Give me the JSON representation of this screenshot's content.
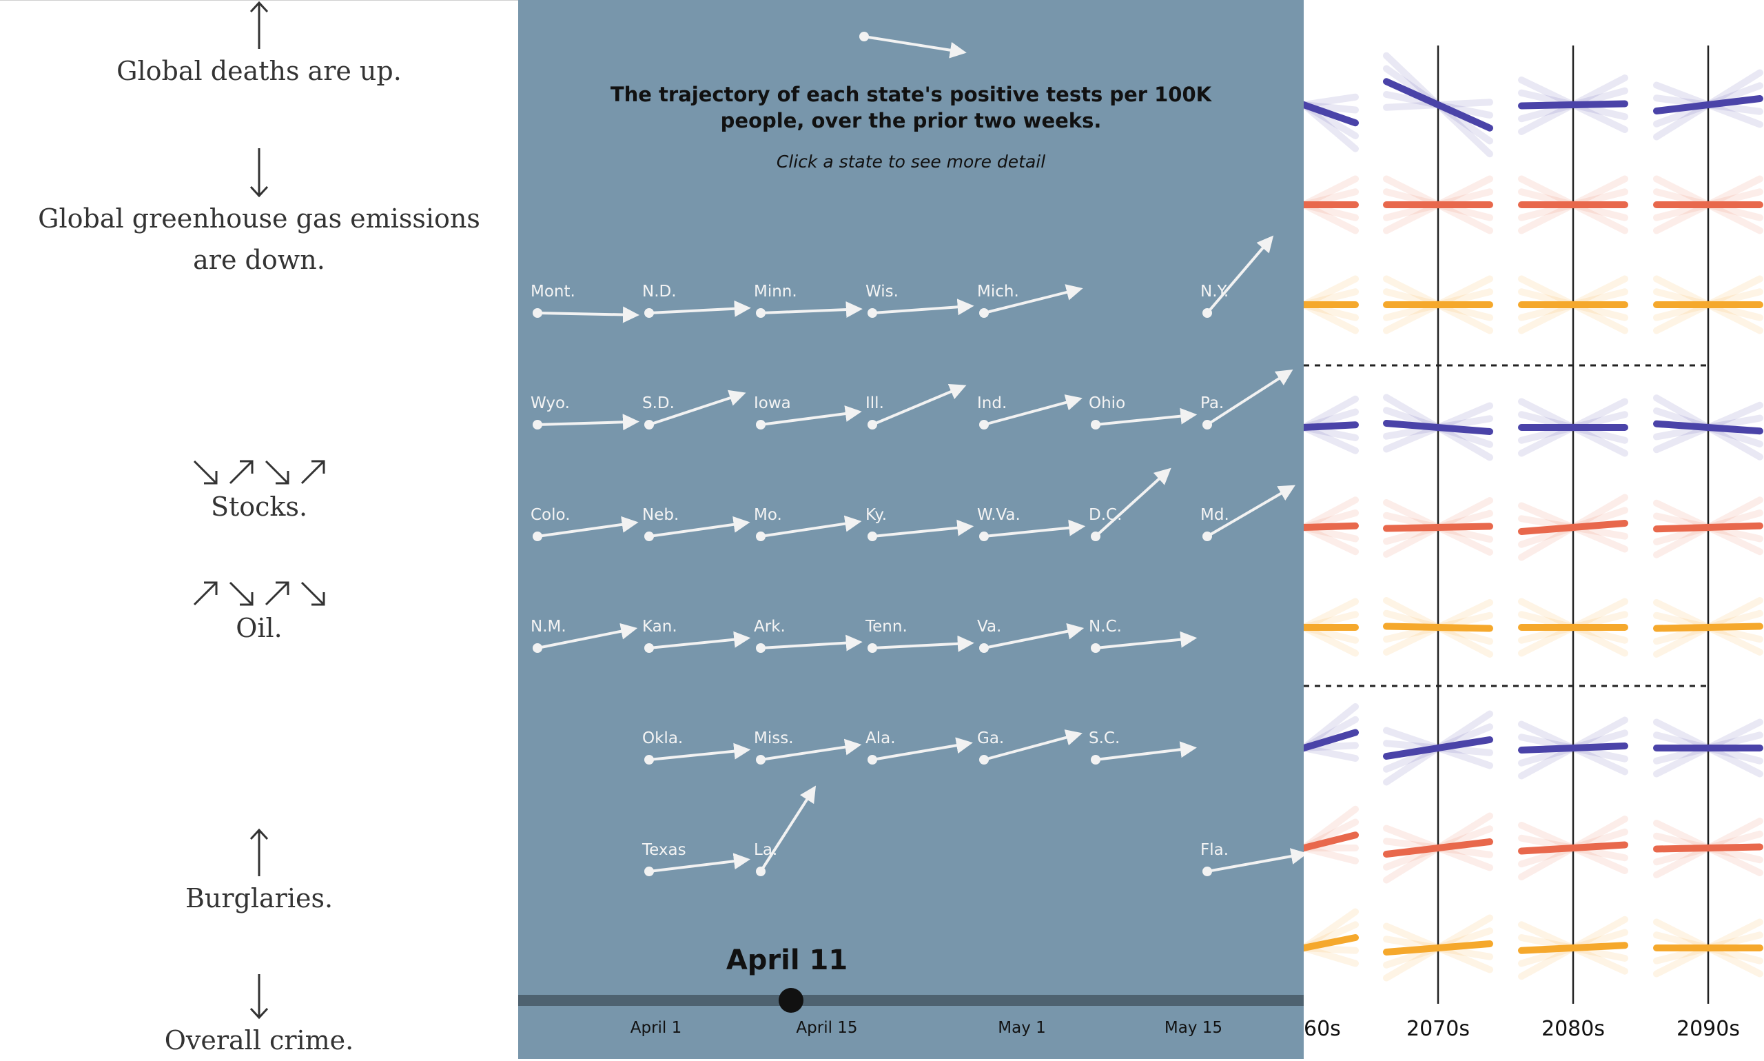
{
  "left_panel": {
    "items": [
      {
        "text": "Global deaths are up.",
        "arrows": [
          "up-arrow-icon"
        ]
      },
      {
        "text": "Global greenhouse gas emissions are down.",
        "arrows": [
          "down-arrow-icon"
        ]
      },
      {
        "text": "Stocks.",
        "arrows": [
          "down-right-arrow-icon",
          "up-right-arrow-icon",
          "down-right-arrow-icon",
          "up-right-arrow-icon"
        ]
      },
      {
        "text": "Oil.",
        "arrows": [
          "up-right-arrow-icon",
          "down-right-arrow-icon",
          "up-right-arrow-icon",
          "down-right-arrow-icon"
        ]
      },
      {
        "text": "Burglaries.",
        "arrows": [
          "up-arrow-icon"
        ]
      },
      {
        "text": "Overall crime.",
        "arrows": [
          "down-arrow-icon"
        ]
      }
    ]
  },
  "middle_panel": {
    "background": "#7896ab",
    "title_line1": "The trajectory of each state's positive tests per 100K",
    "title_line2": "people, over the prior two weeks.",
    "instruction": "Click a state to see more detail",
    "current_date": "April 11",
    "timeline_ticks": [
      "April 1",
      "April 15",
      "May 1",
      "May 15"
    ],
    "states": [
      {
        "label": "Mont.",
        "dx": 1,
        "dy": 0.02
      },
      {
        "label": "N.D.",
        "dx": 1,
        "dy": -0.05
      },
      {
        "label": "Minn.",
        "dx": 1,
        "dy": -0.04
      },
      {
        "label": "Wis.",
        "dx": 1,
        "dy": -0.07
      },
      {
        "label": "Mich.",
        "dx": 1,
        "dy": -0.25
      },
      {
        "label": "N.Y.",
        "dx": 0.65,
        "dy": -0.76
      },
      {
        "label": "Wyo.",
        "dx": 1,
        "dy": -0.03
      },
      {
        "label": "S.D.",
        "dx": 1,
        "dy": -0.33
      },
      {
        "label": "Iowa",
        "dx": 1,
        "dy": -0.13
      },
      {
        "label": "Ill.",
        "dx": 1,
        "dy": -0.42
      },
      {
        "label": "Ind.",
        "dx": 1,
        "dy": -0.27
      },
      {
        "label": "Ohio",
        "dx": 1,
        "dy": -0.1
      },
      {
        "label": "Pa.",
        "dx": 0.84,
        "dy": -0.54
      },
      {
        "label": "Colo.",
        "dx": 1,
        "dy": -0.14
      },
      {
        "label": "Neb.",
        "dx": 1,
        "dy": -0.14
      },
      {
        "label": "Mo.",
        "dx": 1,
        "dy": -0.15
      },
      {
        "label": "Ky.",
        "dx": 1,
        "dy": -0.1
      },
      {
        "label": "W.Va.",
        "dx": 1,
        "dy": -0.1
      },
      {
        "label": "D.C.",
        "dx": 0.74,
        "dy": -0.67
      },
      {
        "label": "Md.",
        "dx": 0.86,
        "dy": -0.5
      },
      {
        "label": "N.M.",
        "dx": 1,
        "dy": -0.2
      },
      {
        "label": "Kan.",
        "dx": 1,
        "dy": -0.1
      },
      {
        "label": "Ark.",
        "dx": 1,
        "dy": -0.06
      },
      {
        "label": "Tenn.",
        "dx": 1,
        "dy": -0.05
      },
      {
        "label": "Va.",
        "dx": 1,
        "dy": -0.2
      },
      {
        "label": "N.C.",
        "dx": 1,
        "dy": -0.1
      },
      {
        "label": "Okla.",
        "dx": 1,
        "dy": -0.1
      },
      {
        "label": "Miss.",
        "dx": 1,
        "dy": -0.15
      },
      {
        "label": "Ala.",
        "dx": 1,
        "dy": -0.17
      },
      {
        "label": "Ga.",
        "dx": 1,
        "dy": -0.27
      },
      {
        "label": "S.C.",
        "dx": 1,
        "dy": -0.12
      },
      {
        "label": "Texas",
        "dx": 1,
        "dy": -0.12
      },
      {
        "label": "La.",
        "dx": 0.54,
        "dy": -0.84
      },
      {
        "label": "Fla.",
        "dx": 1,
        "dy": -0.18
      }
    ]
  },
  "right_panel": {
    "decade_labels": [
      "60s",
      "2070s",
      "2080s",
      "2090s"
    ],
    "colors": {
      "purple": "#4a43a8",
      "red": "#e8684c",
      "orange": "#f5a82c",
      "axis": "#222222"
    },
    "groups": [
      {
        "slopes": {
          "purple": [
            -0.35,
            -0.45,
            0.02,
            0.12
          ],
          "red": [
            0.0,
            0.0,
            0.0,
            0.0
          ],
          "orange": [
            0.0,
            0.0,
            0.0,
            0.0
          ]
        }
      },
      {
        "slopes": {
          "purple": [
            0.05,
            -0.08,
            0.0,
            -0.07
          ],
          "red": [
            0.03,
            0.02,
            0.08,
            0.03
          ],
          "orange": [
            0.0,
            -0.02,
            0.0,
            0.02
          ]
        }
      },
      {
        "slopes": {
          "purple": [
            0.3,
            0.16,
            0.04,
            0.0
          ],
          "red": [
            0.25,
            0.12,
            0.06,
            0.02
          ],
          "orange": [
            0.2,
            0.08,
            0.05,
            0.0
          ]
        }
      }
    ]
  }
}
